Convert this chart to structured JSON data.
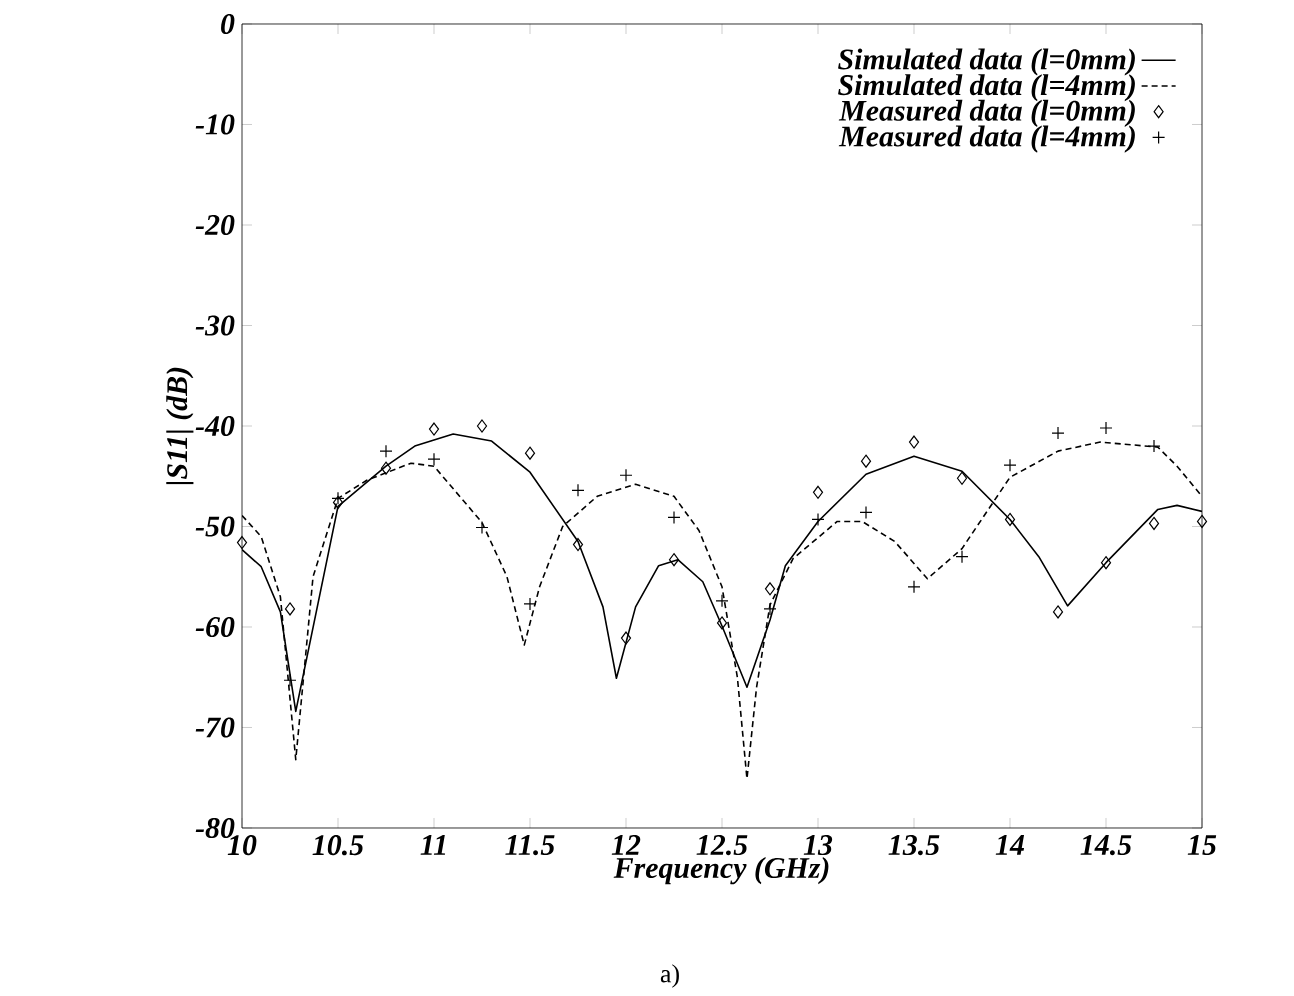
{
  "chart_data": {
    "type": "line",
    "xlabel": "Frequency (GHz)",
    "ylabel": "|S11| (dB)",
    "annotations": [
      "a)"
    ],
    "xlim": [
      10,
      15
    ],
    "ylim": [
      -80,
      0
    ],
    "xticks": [
      10,
      10.5,
      11,
      11.5,
      12,
      12.5,
      13,
      13.5,
      14,
      14.5,
      15
    ],
    "yticks": [
      -80,
      -70,
      -60,
      -50,
      -40,
      -30,
      -20,
      -10,
      0
    ],
    "legend": "top right",
    "grid": false,
    "series": [
      {
        "name": "Simulated data (l=0mm)",
        "type": "line",
        "line_style": "solid",
        "marker": "none",
        "color": "#000000",
        "x": [
          10,
          10.1,
          10.2,
          10.28,
          10.5,
          10.75,
          10.9,
          11.1,
          11.3,
          11.5,
          11.75,
          11.88,
          11.95,
          12.05,
          12.17,
          12.27,
          12.4,
          12.5,
          12.63,
          12.75,
          12.83,
          13,
          13.25,
          13.5,
          13.75,
          14,
          14.15,
          14.3,
          14.5,
          14.77,
          14.87,
          15
        ],
        "values": [
          -52.3,
          -54,
          -58.5,
          -68.4,
          -48,
          -44,
          -42,
          -40.8,
          -41.5,
          -44.6,
          -51.5,
          -58,
          -65.1,
          -58,
          -53.9,
          -53.3,
          -55.5,
          -59.9,
          -66,
          -59.3,
          -53.9,
          -49.5,
          -44.8,
          -43,
          -44.5,
          -49.3,
          -53,
          -57.9,
          -53.6,
          -48.3,
          -47.9,
          -48.5
        ]
      },
      {
        "name": "Simulated data (l=4mm)",
        "type": "line",
        "line_style": "dashed",
        "marker": "none",
        "color": "#000000",
        "x": [
          10,
          10.1,
          10.2,
          10.28,
          10.37,
          10.5,
          10.65,
          10.88,
          11,
          11.25,
          11.38,
          11.47,
          11.55,
          11.67,
          11.85,
          12.05,
          12.25,
          12.38,
          12.5,
          12.58,
          12.63,
          12.68,
          12.75,
          12.87,
          13.1,
          13.23,
          13.4,
          13.57,
          13.75,
          14,
          14.25,
          14.47,
          14.77,
          14.87,
          15
        ],
        "values": [
          -48.9,
          -51,
          -57,
          -73.2,
          -55,
          -47.2,
          -45.4,
          -43.7,
          -44,
          -49.6,
          -55,
          -61.8,
          -56,
          -50,
          -47,
          -45.8,
          -47,
          -50.4,
          -56,
          -65,
          -75.1,
          -66,
          -57.8,
          -53.2,
          -49.5,
          -49.5,
          -51.5,
          -55.2,
          -52.2,
          -45.1,
          -42.5,
          -41.6,
          -42.1,
          -44,
          -47
        ]
      },
      {
        "name": "Measured data (l=0mm)",
        "type": "scatter",
        "marker": "diamond",
        "color": "#000000",
        "x": [
          10,
          10.25,
          10.5,
          10.75,
          11,
          11.25,
          11.5,
          11.75,
          12,
          12.25,
          12.5,
          12.75,
          13,
          13.25,
          13.5,
          13.75,
          14,
          14.25,
          14.5,
          14.75,
          15
        ],
        "values": [
          -51.6,
          -58.2,
          -47.6,
          -44.2,
          -40.3,
          -40,
          -42.7,
          -51.8,
          -61.1,
          -53.3,
          -59.6,
          -56.2,
          -46.6,
          -43.5,
          -41.6,
          -45.2,
          -49.3,
          -58.5,
          -53.6,
          -49.7,
          -49.5
        ]
      },
      {
        "name": "Measured data (l=4mm)",
        "type": "scatter",
        "marker": "cross",
        "color": "#000000",
        "x": [
          10.25,
          10.5,
          10.75,
          11,
          11.25,
          11.5,
          11.75,
          12,
          12.25,
          12.5,
          12.75,
          13,
          13.25,
          13.5,
          13.75,
          14,
          14.25,
          14.5,
          14.75
        ],
        "values": [
          -65.3,
          -47.2,
          -42.5,
          -43.3,
          -50.1,
          -57.7,
          -46.4,
          -44.9,
          -49.1,
          -57.4,
          -58.2,
          -49.3,
          -48.6,
          -56,
          -53,
          -43.9,
          -40.7,
          -40.2,
          -42
        ]
      }
    ]
  }
}
